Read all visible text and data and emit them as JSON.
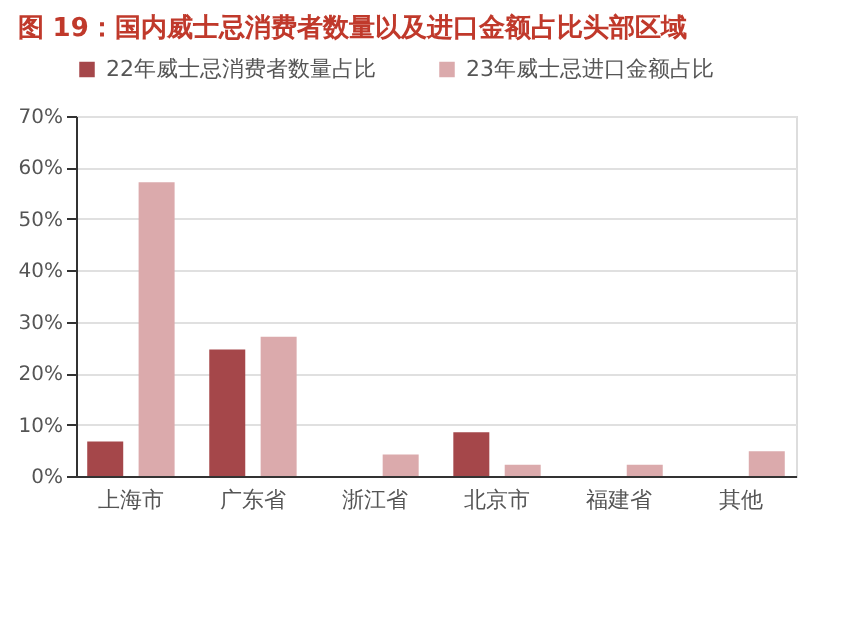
{
  "chart_data": {
    "type": "bar",
    "title": "图 19：国内威士忌消费者数量以及进口金额占比头部区域",
    "categories": [
      "上海市",
      "广东省",
      "浙江省",
      "北京市",
      "福建省",
      "其他"
    ],
    "series": [
      {
        "name": "22年威士忌消费者数量占比",
        "color": "#a5474a",
        "values": [
          6.7,
          24.6,
          null,
          8.5,
          null,
          null
        ]
      },
      {
        "name": "23年威士忌进口金额占比",
        "color": "#dbaaac",
        "values": [
          57.1,
          27.1,
          4.2,
          2.2,
          2.2,
          4.8
        ]
      }
    ],
    "ylim": [
      0,
      70
    ],
    "yticks": [
      {
        "value": 0,
        "label": "0%"
      },
      {
        "value": 10,
        "label": "10%"
      },
      {
        "value": 20,
        "label": "20%"
      },
      {
        "value": 30,
        "label": "30%"
      },
      {
        "value": 40,
        "label": "40%"
      },
      {
        "value": 50,
        "label": "50%"
      },
      {
        "value": 60,
        "label": "60%"
      },
      {
        "value": 70,
        "label": "70%"
      }
    ],
    "grid": "y",
    "legend": "top"
  }
}
